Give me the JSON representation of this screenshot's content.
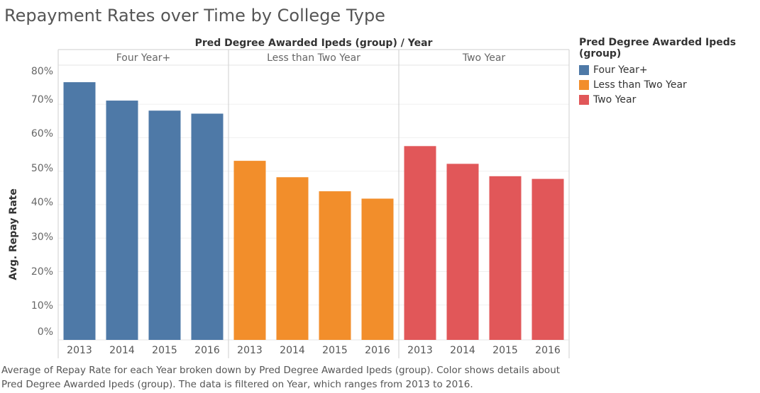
{
  "title": "Repayment Rates over Time by College Type",
  "caption": "Average of Repay Rate for each Year broken down by Pred Degree Awarded Ipeds (group).  Color shows details about Pred Degree Awarded Ipeds (group). The data is filtered on Year, which ranges from 2013 to 2016.",
  "legend": {
    "title": "Pred Degree Awarded Ipeds (group)",
    "items": [
      {
        "label": "Four Year+",
        "color": "#4e79a7"
      },
      {
        "label": "Less than Two Year",
        "color": "#f28e2b"
      },
      {
        "label": "Two Year",
        "color": "#e15759"
      }
    ]
  },
  "chart_data": {
    "type": "bar",
    "title": "Repayment Rates over Time by College Type",
    "column_header": "Pred Degree Awarded Ipeds (group)  /  Year",
    "ylabel": "Avg. Repay Rate",
    "ylim": [
      0,
      0.8
    ],
    "yticks": [
      "0%",
      "10%",
      "20%",
      "30%",
      "40%",
      "50%",
      "60%",
      "70%",
      "80%"
    ],
    "grid": true,
    "categories": [
      "2013",
      "2014",
      "2015",
      "2016"
    ],
    "series": [
      {
        "name": "Four Year+",
        "color": "#4e79a7",
        "values": [
          0.766,
          0.711,
          0.681,
          0.672
        ]
      },
      {
        "name": "Less than Two Year",
        "color": "#f28e2b",
        "values": [
          0.531,
          0.482,
          0.44,
          0.418
        ]
      },
      {
        "name": "Two Year",
        "color": "#e15759",
        "values": [
          0.575,
          0.522,
          0.485,
          0.477
        ]
      }
    ]
  }
}
